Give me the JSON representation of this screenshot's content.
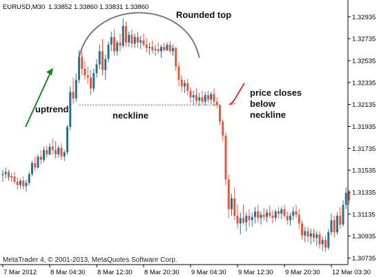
{
  "header": {
    "symbol": "EURUSD,M30",
    "ohlc": "1.33852 1.33860 1.33831 1.33860"
  },
  "footer": {
    "copyright": "MetaTrader 4, © 2001-2013, MetaQuotes Software Corp."
  },
  "colors": {
    "bull": "#2e6f8e",
    "bear": "#e8553a",
    "axis": "#000000",
    "neckline": "#888888",
    "arc": "#777777",
    "uptrend_arrow": "#138a13",
    "pointer_arrow": "#e00000"
  },
  "annotations": {
    "rounded_top": "Rounded top",
    "uptrend": "uptrend",
    "neckline": "neckline",
    "price_closes": [
      "price closes",
      "below",
      "neckline"
    ]
  },
  "chart_data": {
    "type": "candlestick",
    "ylim": [
      1.30675,
      1.33075
    ],
    "y_ticks": [
      "1.32935",
      "1.32735",
      "1.32535",
      "1.32335",
      "1.32135",
      "1.31935",
      "1.31735",
      "1.31535",
      "1.31335",
      "1.31135",
      "1.30935",
      "1.30735"
    ],
    "x_tick_labels": [
      "7 Mar 2012",
      "8 Mar 04:30",
      "8 Mar 12:30",
      "8 Mar 20:30",
      "9 Mar 04:30",
      "9 Mar 12:30",
      "9 Mar 20:30",
      "12 Mar 03:30"
    ],
    "x_tick_index": [
      0,
      16,
      32,
      48,
      64,
      80,
      96,
      112
    ],
    "neckline_price": 1.3213,
    "candles": [
      {
        "o": 1.3149,
        "h": 1.3154,
        "l": 1.3143,
        "c": 1.315
      },
      {
        "o": 1.315,
        "h": 1.3156,
        "l": 1.3146,
        "c": 1.3152
      },
      {
        "o": 1.3152,
        "h": 1.3154,
        "l": 1.3144,
        "c": 1.3147
      },
      {
        "o": 1.3147,
        "h": 1.3151,
        "l": 1.3143,
        "c": 1.3148
      },
      {
        "o": 1.3148,
        "h": 1.3152,
        "l": 1.3141,
        "c": 1.3143
      },
      {
        "o": 1.3143,
        "h": 1.3147,
        "l": 1.3136,
        "c": 1.314
      },
      {
        "o": 1.314,
        "h": 1.3146,
        "l": 1.3137,
        "c": 1.3144
      },
      {
        "o": 1.3144,
        "h": 1.3148,
        "l": 1.3136,
        "c": 1.3139
      },
      {
        "o": 1.3139,
        "h": 1.3145,
        "l": 1.3134,
        "c": 1.3142
      },
      {
        "o": 1.3142,
        "h": 1.3152,
        "l": 1.314,
        "c": 1.315
      },
      {
        "o": 1.315,
        "h": 1.3162,
        "l": 1.3148,
        "c": 1.316
      },
      {
        "o": 1.316,
        "h": 1.3166,
        "l": 1.3153,
        "c": 1.3156
      },
      {
        "o": 1.3156,
        "h": 1.3168,
        "l": 1.3155,
        "c": 1.3166
      },
      {
        "o": 1.3166,
        "h": 1.3172,
        "l": 1.3159,
        "c": 1.3163
      },
      {
        "o": 1.3163,
        "h": 1.3175,
        "l": 1.3161,
        "c": 1.3172
      },
      {
        "o": 1.3172,
        "h": 1.3176,
        "l": 1.3165,
        "c": 1.3168
      },
      {
        "o": 1.3168,
        "h": 1.3178,
        "l": 1.3167,
        "c": 1.3175
      },
      {
        "o": 1.3175,
        "h": 1.3182,
        "l": 1.3168,
        "c": 1.3172
      },
      {
        "o": 1.3172,
        "h": 1.318,
        "l": 1.3164,
        "c": 1.3168
      },
      {
        "o": 1.3168,
        "h": 1.3176,
        "l": 1.3165,
        "c": 1.3174
      },
      {
        "o": 1.3174,
        "h": 1.3178,
        "l": 1.3163,
        "c": 1.3166
      },
      {
        "o": 1.3166,
        "h": 1.3172,
        "l": 1.3162,
        "c": 1.317
      },
      {
        "o": 1.317,
        "h": 1.3195,
        "l": 1.3168,
        "c": 1.3193
      },
      {
        "o": 1.3193,
        "h": 1.323,
        "l": 1.319,
        "c": 1.3225
      },
      {
        "o": 1.3225,
        "h": 1.3238,
        "l": 1.3214,
        "c": 1.3219
      },
      {
        "o": 1.3219,
        "h": 1.3242,
        "l": 1.3216,
        "c": 1.3236
      },
      {
        "o": 1.3236,
        "h": 1.3263,
        "l": 1.3233,
        "c": 1.3257
      },
      {
        "o": 1.3257,
        "h": 1.3262,
        "l": 1.324,
        "c": 1.3246
      },
      {
        "o": 1.3246,
        "h": 1.3253,
        "l": 1.3236,
        "c": 1.324
      },
      {
        "o": 1.324,
        "h": 1.3248,
        "l": 1.3232,
        "c": 1.3238
      },
      {
        "o": 1.3238,
        "h": 1.3245,
        "l": 1.3222,
        "c": 1.3228
      },
      {
        "o": 1.3228,
        "h": 1.3246,
        "l": 1.3225,
        "c": 1.3242
      },
      {
        "o": 1.3242,
        "h": 1.3255,
        "l": 1.3238,
        "c": 1.325
      },
      {
        "o": 1.325,
        "h": 1.3268,
        "l": 1.3246,
        "c": 1.3262
      },
      {
        "o": 1.3262,
        "h": 1.3273,
        "l": 1.324,
        "c": 1.3245
      },
      {
        "o": 1.3245,
        "h": 1.3259,
        "l": 1.3236,
        "c": 1.3255
      },
      {
        "o": 1.3255,
        "h": 1.3271,
        "l": 1.3252,
        "c": 1.3268
      },
      {
        "o": 1.3268,
        "h": 1.328,
        "l": 1.3262,
        "c": 1.3275
      },
      {
        "o": 1.3275,
        "h": 1.3282,
        "l": 1.3258,
        "c": 1.3262
      },
      {
        "o": 1.3262,
        "h": 1.3272,
        "l": 1.3258,
        "c": 1.327
      },
      {
        "o": 1.327,
        "h": 1.3278,
        "l": 1.3262,
        "c": 1.3267
      },
      {
        "o": 1.3267,
        "h": 1.3292,
        "l": 1.3265,
        "c": 1.3285
      },
      {
        "o": 1.3285,
        "h": 1.3289,
        "l": 1.3266,
        "c": 1.327
      },
      {
        "o": 1.327,
        "h": 1.328,
        "l": 1.3266,
        "c": 1.3277
      },
      {
        "o": 1.3277,
        "h": 1.3282,
        "l": 1.3265,
        "c": 1.3269
      },
      {
        "o": 1.3269,
        "h": 1.3278,
        "l": 1.3265,
        "c": 1.3275
      },
      {
        "o": 1.3275,
        "h": 1.328,
        "l": 1.3265,
        "c": 1.327
      },
      {
        "o": 1.327,
        "h": 1.3276,
        "l": 1.3264,
        "c": 1.3272
      },
      {
        "o": 1.3272,
        "h": 1.3278,
        "l": 1.3266,
        "c": 1.3268
      },
      {
        "o": 1.3268,
        "h": 1.3274,
        "l": 1.3261,
        "c": 1.3265
      },
      {
        "o": 1.3265,
        "h": 1.327,
        "l": 1.3259,
        "c": 1.3266
      },
      {
        "o": 1.3266,
        "h": 1.3272,
        "l": 1.326,
        "c": 1.3263
      },
      {
        "o": 1.3263,
        "h": 1.3268,
        "l": 1.3258,
        "c": 1.3264
      },
      {
        "o": 1.3264,
        "h": 1.327,
        "l": 1.326,
        "c": 1.3262
      },
      {
        "o": 1.3262,
        "h": 1.3268,
        "l": 1.3256,
        "c": 1.3266
      },
      {
        "o": 1.3266,
        "h": 1.327,
        "l": 1.3262,
        "c": 1.3263
      },
      {
        "o": 1.3263,
        "h": 1.327,
        "l": 1.3262,
        "c": 1.3268
      },
      {
        "o": 1.3268,
        "h": 1.3271,
        "l": 1.326,
        "c": 1.3262
      },
      {
        "o": 1.3262,
        "h": 1.3268,
        "l": 1.3258,
        "c": 1.3265
      },
      {
        "o": 1.3265,
        "h": 1.3266,
        "l": 1.3244,
        "c": 1.3248
      },
      {
        "o": 1.3248,
        "h": 1.3252,
        "l": 1.323,
        "c": 1.3236
      },
      {
        "o": 1.3236,
        "h": 1.324,
        "l": 1.3225,
        "c": 1.323
      },
      {
        "o": 1.323,
        "h": 1.3236,
        "l": 1.3224,
        "c": 1.3233
      },
      {
        "o": 1.3233,
        "h": 1.3237,
        "l": 1.3222,
        "c": 1.3226
      },
      {
        "o": 1.3226,
        "h": 1.3229,
        "l": 1.3215,
        "c": 1.322
      },
      {
        "o": 1.322,
        "h": 1.3226,
        "l": 1.3213,
        "c": 1.3222
      },
      {
        "o": 1.3222,
        "h": 1.3228,
        "l": 1.3214,
        "c": 1.3217
      },
      {
        "o": 1.3217,
        "h": 1.3224,
        "l": 1.3212,
        "c": 1.322
      },
      {
        "o": 1.322,
        "h": 1.3226,
        "l": 1.3214,
        "c": 1.3216
      },
      {
        "o": 1.3216,
        "h": 1.3225,
        "l": 1.3213,
        "c": 1.3222
      },
      {
        "o": 1.3222,
        "h": 1.3226,
        "l": 1.3215,
        "c": 1.3218
      },
      {
        "o": 1.3218,
        "h": 1.3225,
        "l": 1.3214,
        "c": 1.3223
      },
      {
        "o": 1.3223,
        "h": 1.3228,
        "l": 1.3212,
        "c": 1.3216
      },
      {
        "o": 1.3216,
        "h": 1.322,
        "l": 1.321,
        "c": 1.3213
      },
      {
        "o": 1.3213,
        "h": 1.3214,
        "l": 1.3195,
        "c": 1.3198
      },
      {
        "o": 1.3198,
        "h": 1.32,
        "l": 1.318,
        "c": 1.3185
      },
      {
        "o": 1.3185,
        "h": 1.3188,
        "l": 1.314,
        "c": 1.3145
      },
      {
        "o": 1.3145,
        "h": 1.315,
        "l": 1.311,
        "c": 1.3118
      },
      {
        "o": 1.3118,
        "h": 1.3132,
        "l": 1.3112,
        "c": 1.3128
      },
      {
        "o": 1.3128,
        "h": 1.3138,
        "l": 1.3108,
        "c": 1.3112
      },
      {
        "o": 1.3112,
        "h": 1.3122,
        "l": 1.31,
        "c": 1.3105
      },
      {
        "o": 1.3105,
        "h": 1.3115,
        "l": 1.3095,
        "c": 1.311
      },
      {
        "o": 1.311,
        "h": 1.3122,
        "l": 1.3104,
        "c": 1.3106
      },
      {
        "o": 1.3106,
        "h": 1.3115,
        "l": 1.3098,
        "c": 1.3112
      },
      {
        "o": 1.3112,
        "h": 1.3118,
        "l": 1.3102,
        "c": 1.3108
      },
      {
        "o": 1.3108,
        "h": 1.3115,
        "l": 1.3102,
        "c": 1.3111
      },
      {
        "o": 1.3111,
        "h": 1.312,
        "l": 1.3105,
        "c": 1.3116
      },
      {
        "o": 1.3116,
        "h": 1.3122,
        "l": 1.3106,
        "c": 1.311
      },
      {
        "o": 1.311,
        "h": 1.3116,
        "l": 1.3104,
        "c": 1.3113
      },
      {
        "o": 1.3113,
        "h": 1.3119,
        "l": 1.3108,
        "c": 1.3111
      },
      {
        "o": 1.3111,
        "h": 1.3118,
        "l": 1.3106,
        "c": 1.3115
      },
      {
        "o": 1.3115,
        "h": 1.3121,
        "l": 1.311,
        "c": 1.3112
      },
      {
        "o": 1.3112,
        "h": 1.3117,
        "l": 1.3105,
        "c": 1.311
      },
      {
        "o": 1.311,
        "h": 1.3118,
        "l": 1.3107,
        "c": 1.3116
      },
      {
        "o": 1.3116,
        "h": 1.312,
        "l": 1.311,
        "c": 1.3114
      },
      {
        "o": 1.3114,
        "h": 1.312,
        "l": 1.3109,
        "c": 1.3118
      },
      {
        "o": 1.3118,
        "h": 1.3122,
        "l": 1.311,
        "c": 1.3112
      },
      {
        "o": 1.3112,
        "h": 1.3116,
        "l": 1.3104,
        "c": 1.3108
      },
      {
        "o": 1.3108,
        "h": 1.3115,
        "l": 1.3103,
        "c": 1.3112
      },
      {
        "o": 1.3112,
        "h": 1.312,
        "l": 1.3108,
        "c": 1.3116
      },
      {
        "o": 1.3116,
        "h": 1.3122,
        "l": 1.311,
        "c": 1.3113
      },
      {
        "o": 1.3113,
        "h": 1.3118,
        "l": 1.31,
        "c": 1.3105
      },
      {
        "o": 1.3105,
        "h": 1.3108,
        "l": 1.309,
        "c": 1.3094
      },
      {
        "o": 1.3094,
        "h": 1.3102,
        "l": 1.3088,
        "c": 1.3098
      },
      {
        "o": 1.3098,
        "h": 1.3102,
        "l": 1.3088,
        "c": 1.3093
      },
      {
        "o": 1.3093,
        "h": 1.31,
        "l": 1.3086,
        "c": 1.3096
      },
      {
        "o": 1.3096,
        "h": 1.31,
        "l": 1.3088,
        "c": 1.3092
      },
      {
        "o": 1.3092,
        "h": 1.3098,
        "l": 1.3084,
        "c": 1.3095
      },
      {
        "o": 1.3095,
        "h": 1.3098,
        "l": 1.3082,
        "c": 1.3086
      },
      {
        "o": 1.3086,
        "h": 1.3093,
        "l": 1.308,
        "c": 1.309
      },
      {
        "o": 1.309,
        "h": 1.3094,
        "l": 1.3079,
        "c": 1.3083
      },
      {
        "o": 1.3083,
        "h": 1.31,
        "l": 1.3081,
        "c": 1.3097
      },
      {
        "o": 1.3097,
        "h": 1.3114,
        "l": 1.3094,
        "c": 1.3108
      },
      {
        "o": 1.3108,
        "h": 1.3112,
        "l": 1.3092,
        "c": 1.3097
      },
      {
        "o": 1.3097,
        "h": 1.3115,
        "l": 1.3095,
        "c": 1.3112
      },
      {
        "o": 1.3112,
        "h": 1.312,
        "l": 1.31,
        "c": 1.3104
      },
      {
        "o": 1.3104,
        "h": 1.3126,
        "l": 1.3102,
        "c": 1.3122
      },
      {
        "o": 1.3122,
        "h": 1.3138,
        "l": 1.3118,
        "c": 1.3133
      },
      {
        "o": 1.3133,
        "h": 1.3136,
        "l": 1.3122,
        "c": 1.3126
      }
    ]
  }
}
